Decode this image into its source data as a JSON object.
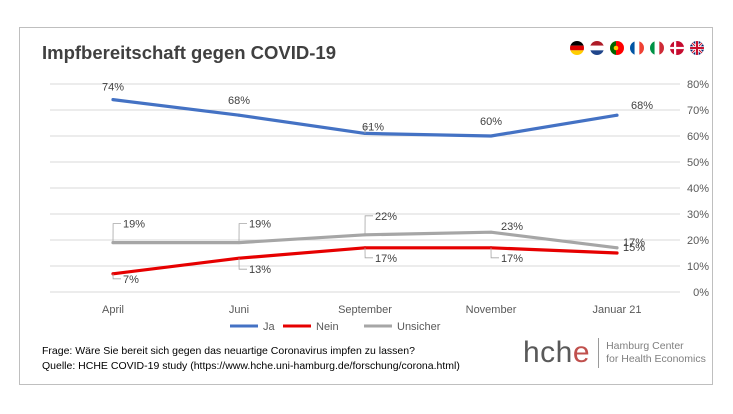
{
  "chart_data": {
    "type": "line",
    "title": "Impfbereitschaft gegen COVID-19",
    "categories": [
      "April",
      "Juni",
      "September",
      "November",
      "Januar 21"
    ],
    "ylim": [
      0,
      80
    ],
    "yticks": [
      "0%",
      "10%",
      "20%",
      "30%",
      "40%",
      "50%",
      "60%",
      "70%",
      "80%"
    ],
    "y_axis_side": "right",
    "series": [
      {
        "name": "Ja",
        "color": "#4472c4",
        "values": [
          74,
          68,
          61,
          60,
          68
        ],
        "labels": [
          "74%",
          "68%",
          "61%",
          "60%",
          "68%"
        ]
      },
      {
        "name": "Nein",
        "color": "#e60000",
        "values": [
          7,
          13,
          17,
          17,
          15
        ],
        "labels": [
          "7%",
          "13%",
          "17%",
          "17%",
          "15%"
        ]
      },
      {
        "name": "Unsicher",
        "color": "#a6a6a6",
        "values": [
          19,
          19,
          22,
          23,
          17
        ],
        "labels": [
          "19%",
          "19%",
          "22%",
          "23%",
          "17%"
        ]
      }
    ],
    "legend_position": "bottom"
  },
  "flags": [
    "german-flag",
    "dutch-flag",
    "portuguese-flag",
    "french-flag",
    "italian-flag",
    "danish-flag",
    "uk-flag"
  ],
  "footer": {
    "question": "Frage: Wäre Sie bereit sich gegen das neuartige Coronavirus impfen zu lassen?",
    "source": "Quelle: HCHE COVID-19 study (https://www.hche.uni-hamburg.de/forschung/corona.html)"
  },
  "logo": {
    "mark_prefix": "hch",
    "mark_suffix": "e",
    "line1": "Hamburg Center",
    "line2": "for Health Economics"
  }
}
